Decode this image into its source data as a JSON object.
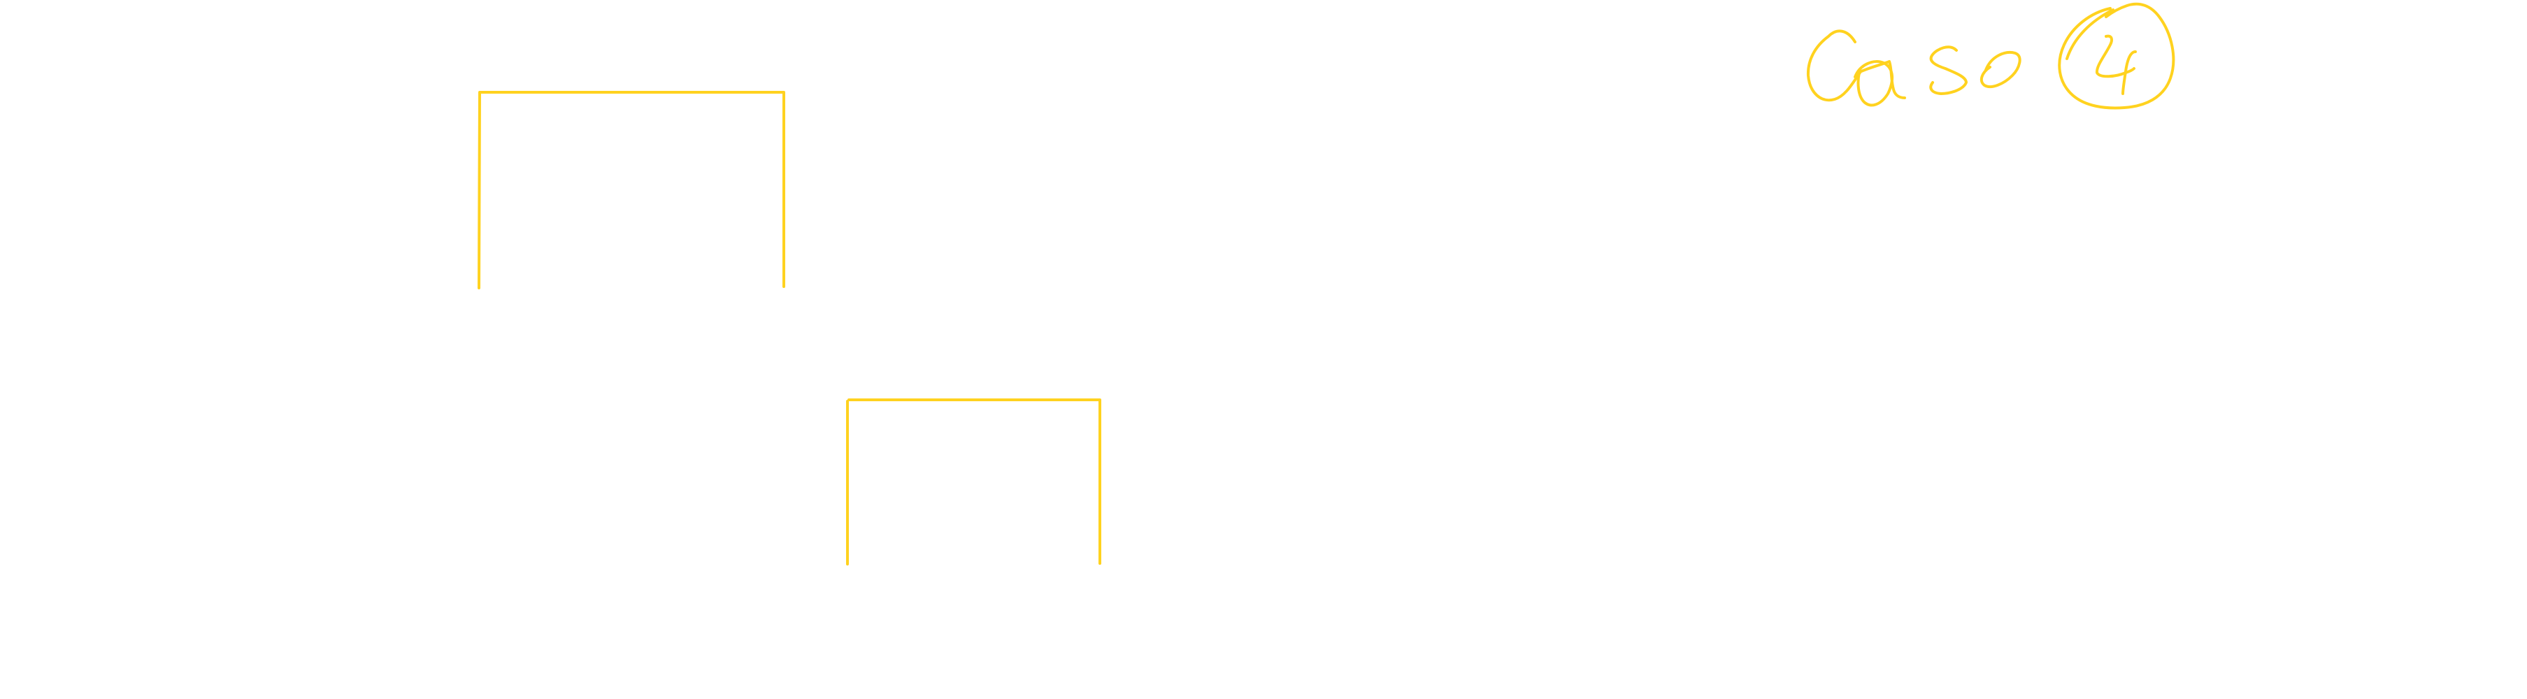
{
  "canvas": {
    "background": "#ffffff"
  },
  "annotation": {
    "text": "Caso 4",
    "word": "Caso",
    "number": "4",
    "color": "#FFD21F",
    "style": "handwritten, number circled"
  },
  "shapes": {
    "stroke_color": "#FFD21F",
    "items": [
      {
        "name": "bracket-upper-left",
        "kind": "open-bottom bracket"
      },
      {
        "name": "bracket-lower-middle",
        "kind": "open-bottom bracket"
      }
    ]
  }
}
